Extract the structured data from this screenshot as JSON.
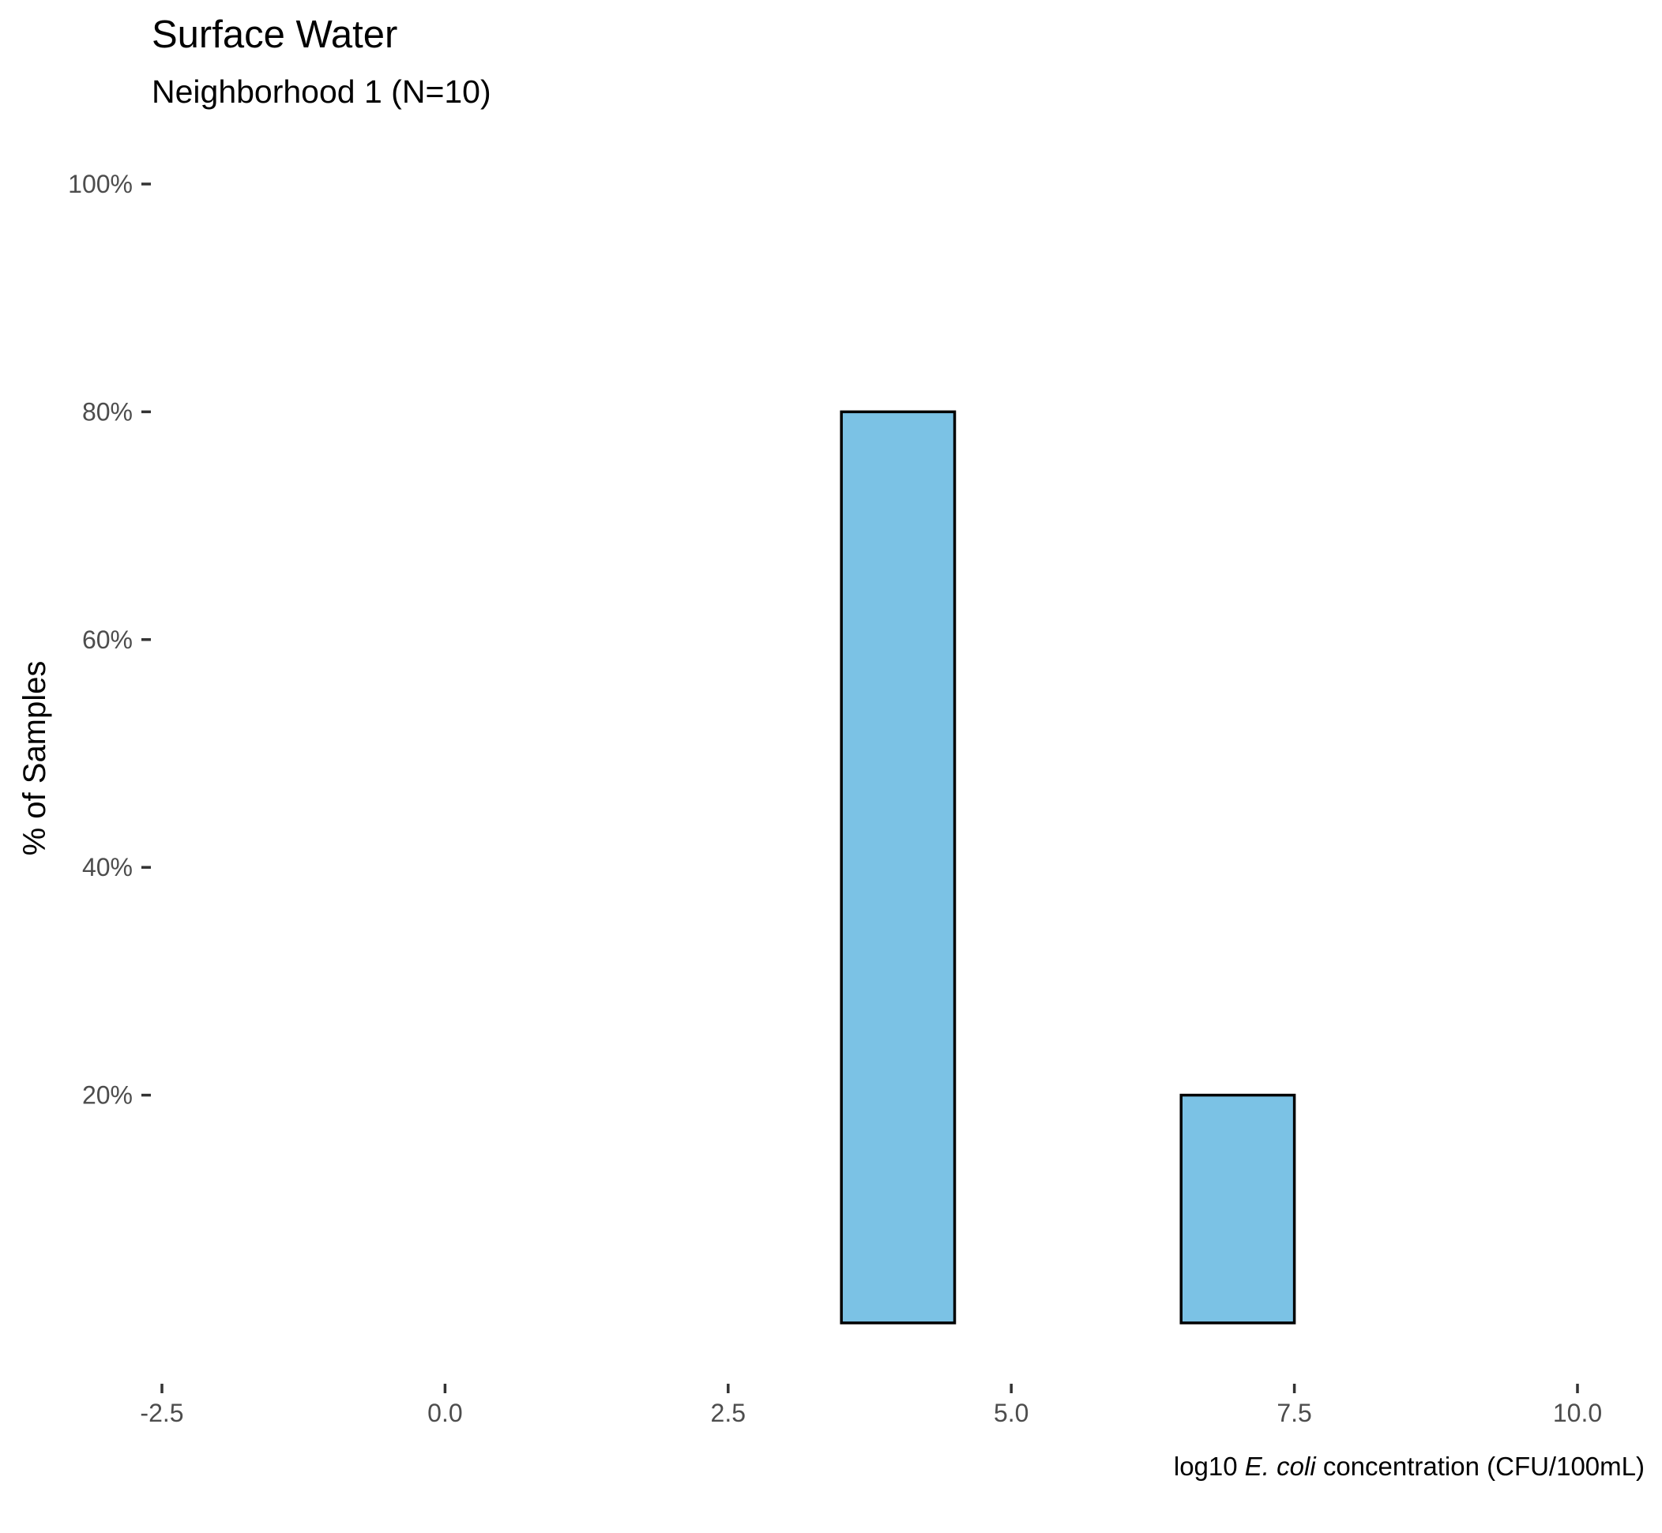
{
  "chart_data": {
    "type": "bar",
    "title": "Surface Water",
    "subtitle": "Neighborhood 1 (N=10)",
    "ylabel": "% of Samples",
    "xlabel": {
      "prefix": "log10 ",
      "italic": "E. coli",
      "suffix": " concentration (CFU/100mL)"
    },
    "xlim": [
      -2.5,
      10
    ],
    "ylim": [
      0,
      100
    ],
    "x_ticks": [
      -2.5,
      0,
      2.5,
      5,
      7.5,
      10
    ],
    "x_tick_labels": [
      "-2.5",
      "0.0",
      "2.5",
      "5.0",
      "7.5",
      "10.0"
    ],
    "y_ticks": [
      20,
      40,
      60,
      80,
      100
    ],
    "y_tick_labels": [
      "20%",
      "40%",
      "60%",
      "80%",
      "100%"
    ],
    "bin_width": 1,
    "bins": [
      {
        "center": -1,
        "value": 0
      },
      {
        "center": 0,
        "value": 0
      },
      {
        "center": 1,
        "value": 0
      },
      {
        "center": 2,
        "value": 0
      },
      {
        "center": 3,
        "value": 0
      },
      {
        "center": 4,
        "value": 80
      },
      {
        "center": 5,
        "value": 0
      },
      {
        "center": 6,
        "value": 0
      },
      {
        "center": 7,
        "value": 20
      },
      {
        "center": 8,
        "value": 0
      },
      {
        "center": 9,
        "value": 0
      }
    ],
    "bar_fill": "#7bc2e5",
    "bar_stroke": "#000000",
    "grid": false
  }
}
